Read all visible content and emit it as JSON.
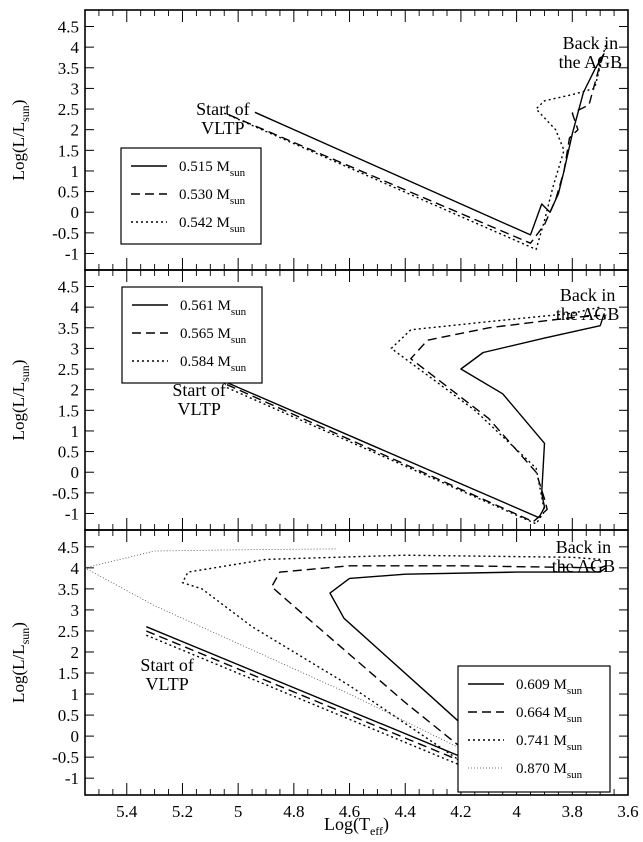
{
  "figure": {
    "xlabel": "Log(T",
    "xlabel_sub": "eff",
    "xlabel_close": ")",
    "ylabel": "Log(L/L",
    "ylabel_sub": "sun",
    "ylabel_close": ")"
  },
  "chart_data": [
    {
      "type": "line",
      "panel": "top",
      "xlim": [
        5.55,
        3.6
      ],
      "ylim": [
        -1.4,
        4.9
      ],
      "x_ticks": [
        5.4,
        5.2,
        5.0,
        4.8,
        4.6,
        4.4,
        4.2,
        4.0,
        3.8,
        3.6
      ],
      "y_ticks": [
        -1,
        -0.5,
        0,
        0.5,
        1,
        1.5,
        2,
        2.5,
        3,
        3.5,
        4,
        4.5
      ],
      "legend": {
        "position": "left",
        "unit": "M",
        "unit_sub": "sun"
      },
      "annotations": [
        {
          "text": [
            "Start of",
            "VLTP"
          ],
          "at": [
            5.055,
            2.35
          ]
        },
        {
          "text": [
            "Back in",
            "the AGB"
          ],
          "at": [
            3.735,
            3.95
          ]
        }
      ],
      "series": [
        {
          "name": "0.515",
          "style": "solid",
          "points": [
            [
              4.94,
              2.42
            ],
            [
              3.95,
              -0.55
            ],
            [
              3.91,
              0.2
            ],
            [
              3.88,
              0.0
            ],
            [
              3.85,
              0.45
            ],
            [
              3.83,
              1.0
            ],
            [
              3.8,
              1.9
            ],
            [
              3.76,
              2.9
            ],
            [
              3.72,
              3.45
            ],
            [
              3.685,
              3.85
            ]
          ]
        },
        {
          "name": "0.530",
          "style": "dashed",
          "points": [
            [
              5.03,
              2.35
            ],
            [
              3.95,
              -0.75
            ],
            [
              3.9,
              -0.3
            ],
            [
              3.86,
              0.3
            ],
            [
              3.83,
              1.0
            ],
            [
              3.81,
              1.8
            ],
            [
              3.78,
              2.0
            ],
            [
              3.8,
              2.4
            ],
            [
              3.74,
              2.6
            ],
            [
              3.7,
              3.6
            ],
            [
              3.68,
              3.95
            ]
          ]
        },
        {
          "name": "0.542",
          "style": "dotted",
          "points": [
            [
              5.05,
              2.4
            ],
            [
              3.93,
              -0.9
            ],
            [
              3.9,
              -0.2
            ],
            [
              3.87,
              0.6
            ],
            [
              3.83,
              1.5
            ],
            [
              3.86,
              2.0
            ],
            [
              3.93,
              2.5
            ],
            [
              3.9,
              2.7
            ],
            [
              3.8,
              2.85
            ],
            [
              3.72,
              3.0
            ],
            [
              3.69,
              3.8
            ],
            [
              3.68,
              4.05
            ]
          ]
        }
      ]
    },
    {
      "type": "line",
      "panel": "middle",
      "xlim": [
        5.55,
        3.6
      ],
      "ylim": [
        -1.4,
        4.9
      ],
      "x_ticks": [
        5.4,
        5.2,
        5.0,
        4.8,
        4.6,
        4.4,
        4.2,
        4.0,
        3.8,
        3.6
      ],
      "y_ticks": [
        -1,
        -0.5,
        0,
        0.5,
        1,
        1.5,
        2,
        2.5,
        3,
        3.5,
        4,
        4.5
      ],
      "legend": {
        "position": "top-left",
        "unit": "M",
        "unit_sub": "sun"
      },
      "annotations": [
        {
          "text": [
            "Start of",
            "VLTP"
          ],
          "at": [
            5.14,
            1.85
          ]
        },
        {
          "text": [
            "Back in",
            "the AGB"
          ],
          "at": [
            3.745,
            4.15
          ]
        }
      ],
      "series": [
        {
          "name": "0.561",
          "style": "solid",
          "points": [
            [
              5.05,
              2.2
            ],
            [
              3.92,
              -1.1
            ],
            [
              3.9,
              -0.85
            ],
            [
              3.91,
              -0.5
            ],
            [
              3.9,
              0.7
            ],
            [
              4.05,
              1.9
            ],
            [
              4.2,
              2.5
            ],
            [
              4.12,
              2.9
            ],
            [
              3.9,
              3.25
            ],
            [
              3.7,
              3.55
            ],
            [
              3.685,
              3.85
            ]
          ]
        },
        {
          "name": "0.565",
          "style": "dashed",
          "points": [
            [
              5.04,
              2.12
            ],
            [
              3.94,
              -1.2
            ],
            [
              3.89,
              -0.9
            ],
            [
              3.9,
              -0.65
            ],
            [
              3.93,
              0.0
            ],
            [
              4.1,
              1.3
            ],
            [
              4.38,
              2.75
            ],
            [
              4.32,
              3.2
            ],
            [
              4.1,
              3.5
            ],
            [
              3.8,
              3.75
            ],
            [
              3.7,
              3.8
            ]
          ]
        },
        {
          "name": "0.584",
          "style": "dotted",
          "points": [
            [
              5.04,
              2.05
            ],
            [
              3.93,
              -1.25
            ],
            [
              3.9,
              -0.95
            ],
            [
              3.91,
              -0.6
            ],
            [
              3.93,
              0.1
            ],
            [
              4.15,
              1.5
            ],
            [
              4.45,
              3.0
            ],
            [
              4.38,
              3.45
            ],
            [
              4.1,
              3.65
            ],
            [
              3.8,
              3.85
            ],
            [
              3.7,
              4.0
            ]
          ]
        }
      ]
    },
    {
      "type": "line",
      "panel": "bottom",
      "xlim": [
        5.55,
        3.6
      ],
      "ylim": [
        -1.4,
        4.9
      ],
      "x_ticks": [
        5.4,
        5.2,
        5.0,
        4.8,
        4.6,
        4.4,
        4.2,
        4.0,
        3.8,
        3.6
      ],
      "x_tick_labels": [
        "5.4",
        "5.2",
        "5",
        "4.8",
        "4.6",
        "4.4",
        "4.2",
        "4",
        "3.8",
        "3.6"
      ],
      "y_ticks": [
        -1,
        -0.5,
        0,
        0.5,
        1,
        1.5,
        2,
        2.5,
        3,
        3.5,
        4,
        4.5
      ],
      "legend": {
        "position": "right",
        "unit": "M",
        "unit_sub": "sun"
      },
      "annotations": [
        {
          "text": [
            "Start of",
            "VLTP"
          ],
          "at": [
            5.255,
            1.55
          ]
        },
        {
          "text": [
            "Back in",
            "the AGB"
          ],
          "at": [
            3.76,
            4.35
          ]
        }
      ],
      "series": [
        {
          "name": "0.609",
          "style": "solid",
          "points": [
            [
              5.33,
              2.6
            ],
            [
              3.94,
              -1.2
            ],
            [
              4.02,
              -1.1
            ],
            [
              4.05,
              -0.6
            ],
            [
              4.3,
              0.9
            ],
            [
              4.62,
              2.8
            ],
            [
              4.67,
              3.4
            ],
            [
              4.6,
              3.75
            ],
            [
              4.4,
              3.85
            ],
            [
              4.0,
              3.9
            ],
            [
              3.7,
              3.9
            ],
            [
              3.68,
              4.0
            ]
          ]
        },
        {
          "name": "0.664",
          "style": "dashed",
          "points": [
            [
              5.33,
              2.5
            ],
            [
              3.96,
              -1.25
            ],
            [
              4.1,
              -0.8
            ],
            [
              4.4,
              0.8
            ],
            [
              4.75,
              2.8
            ],
            [
              4.88,
              3.55
            ],
            [
              4.85,
              3.9
            ],
            [
              4.6,
              4.05
            ],
            [
              4.2,
              4.05
            ],
            [
              3.7,
              4.0
            ],
            [
              3.68,
              4.05
            ]
          ]
        },
        {
          "name": "0.741",
          "style": "dotted",
          "points": [
            [
              5.33,
              2.4
            ],
            [
              3.98,
              -1.3
            ],
            [
              4.2,
              -0.6
            ],
            [
              4.6,
              1.2
            ],
            [
              4.95,
              2.6
            ],
            [
              5.13,
              3.5
            ],
            [
              5.2,
              3.65
            ],
            [
              5.18,
              3.9
            ],
            [
              4.9,
              4.2
            ],
            [
              4.4,
              4.3
            ],
            [
              3.8,
              4.25
            ],
            [
              3.7,
              4.2
            ]
          ]
        },
        {
          "name": "0.870",
          "style": "thin",
          "points": [
            [
              4.65,
              4.45
            ],
            [
              5.0,
              4.43
            ],
            [
              5.3,
              4.4
            ],
            [
              5.55,
              4.0
            ],
            [
              5.3,
              3.1
            ],
            [
              5.0,
              2.2
            ],
            [
              4.6,
              1.0
            ],
            [
              4.2,
              -0.3
            ],
            [
              3.98,
              -1.3
            ]
          ]
        }
      ]
    }
  ]
}
